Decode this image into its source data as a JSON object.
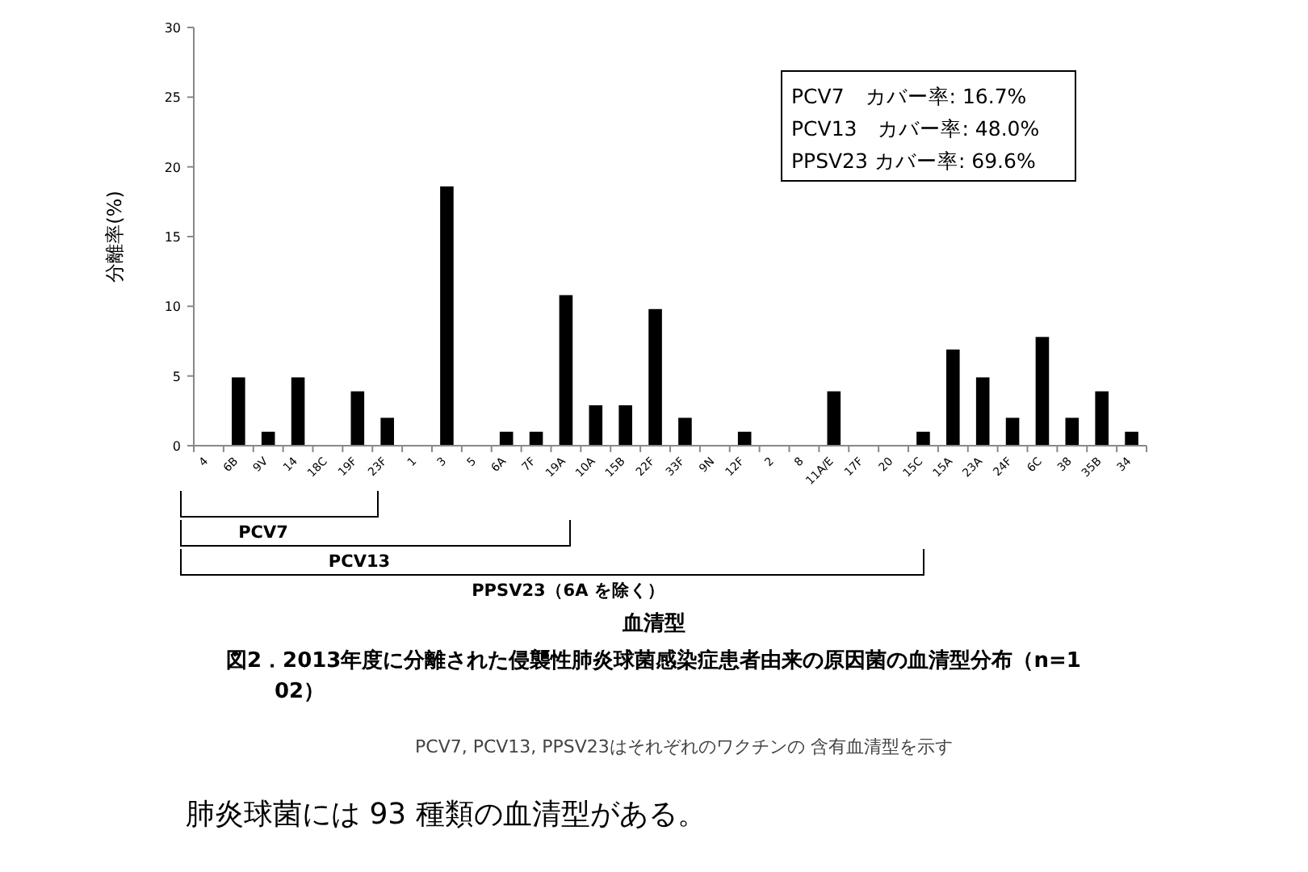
{
  "chart_data": {
    "type": "bar",
    "title": "図2．2013年度に分離された侵襲性肺炎球菌感染症患者由来の原因菌の血清型分布（n=102）",
    "ylabel": "分離率(%)",
    "categories": [
      "4",
      "6B",
      "9V",
      "14",
      "18C",
      "19F",
      "23F",
      "1",
      "3",
      "5",
      "6A",
      "7F",
      "19A",
      "10A",
      "15B",
      "22F",
      "33F",
      "9N",
      "12F",
      "2",
      "8",
      "11A/E",
      "17F",
      "20",
      "15C",
      "15A",
      "23A",
      "24F",
      "6C",
      "38",
      "35B",
      "34"
    ],
    "values": [
      0,
      4.9,
      1,
      4.9,
      0,
      3.9,
      2,
      0,
      18.6,
      0,
      1,
      1,
      10.8,
      2.9,
      2.9,
      9.8,
      2,
      0,
      1,
      0,
      0,
      3.9,
      0,
      0,
      1,
      6.9,
      4.9,
      2,
      7.8,
      2,
      3.9,
      1
    ],
    "color": "#000000",
    "ylim": [
      0,
      30
    ],
    "yticks": [
      0,
      5,
      10,
      15,
      20,
      25,
      30
    ],
    "grid": false,
    "annotations": [
      "PCV7　カバー率: 16.7%",
      "PCV13　カバー率: 48.0%",
      "PPSV23 カバー率: 69.6%",
      "PCV7",
      "PCV13",
      "PPSV23（6A を除く）",
      "血清型",
      "PCV7, PCV13, PPSV23はそれぞれのワクチンの 含有血清型を示す",
      "肺炎球菌には 93 種類の血清型がある。"
    ]
  }
}
